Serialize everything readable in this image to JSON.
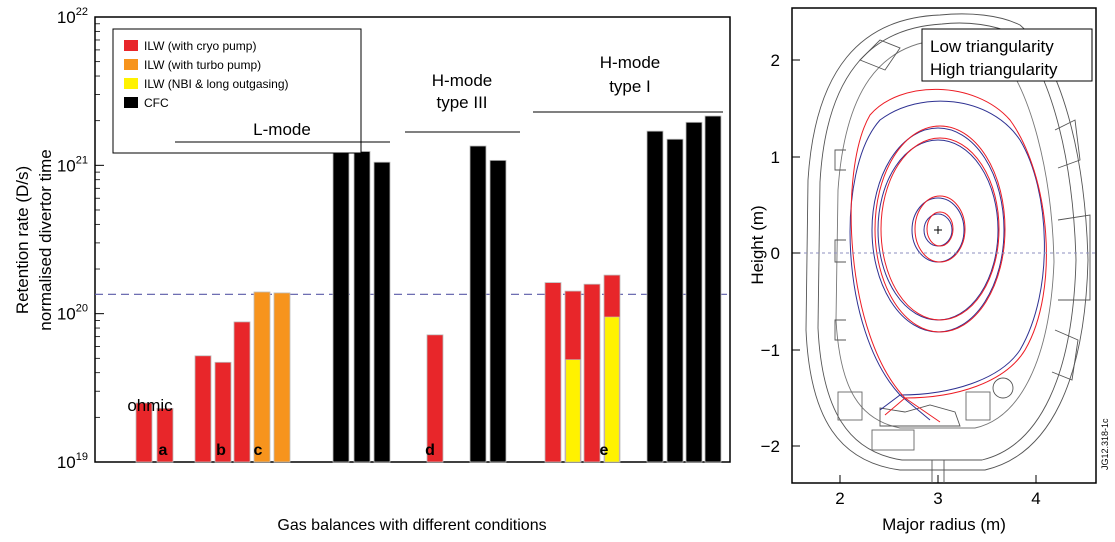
{
  "chart_data": [
    {
      "type": "bar",
      "xlabel": "Gas balances with different conditions",
      "ylabel_line1": "Retention rate (D/s)",
      "ylabel_line2": "normalised divertor time",
      "yscale": "log",
      "ylim": [
        1e+19,
        1e+22
      ],
      "yticks": [
        {
          "value": 1e+19,
          "base": "10",
          "exp": "19"
        },
        {
          "value": 1e+20,
          "base": "10",
          "exp": "20"
        },
        {
          "value": 1e+21,
          "base": "10",
          "exp": "21"
        },
        {
          "value": 1e+22,
          "base": "10",
          "exp": "22"
        }
      ],
      "reference_line": {
        "value": 1.35e+20,
        "color": "#5a5aa8",
        "style": "dashed"
      },
      "legend": {
        "placement": "top-left",
        "entries": [
          {
            "label": "ILW (with cryo pump)",
            "color": "#e8262a"
          },
          {
            "label": "ILW (with turbo pump)",
            "color": "#f7941d"
          },
          {
            "label": "ILW (NBI & long outgasing)",
            "color": "#fff200"
          },
          {
            "label": "CFC",
            "color": "#000000"
          }
        ]
      },
      "bars": [
        {
          "category": 0,
          "value": 2.5e+19,
          "color": "#e8262a"
        },
        {
          "category": 1,
          "value": 2.3e+19,
          "color": "#e8262a"
        },
        {
          "category": 2,
          "value": 5.2e+19,
          "color": "#e8262a"
        },
        {
          "category": 3,
          "value": 4.7e+19,
          "color": "#e8262a"
        },
        {
          "category": 4,
          "value": 8.8e+19,
          "color": "#e8262a"
        },
        {
          "category": 5,
          "value": 1.4e+20,
          "color": "#f7941d"
        },
        {
          "category": 6,
          "value": 1.38e+20,
          "color": "#f7941d"
        },
        {
          "category": 7,
          "value": 1.25e+21,
          "color": "#000000"
        },
        {
          "category": 8,
          "value": 1.24e+21,
          "color": "#000000"
        },
        {
          "category": 9,
          "value": 1.05e+21,
          "color": "#000000"
        },
        {
          "category": 10,
          "value": 7.2e+19,
          "color": "#e8262a"
        },
        {
          "category": 11,
          "value": 1.35e+21,
          "color": "#000000"
        },
        {
          "category": 12,
          "value": 1.08e+21,
          "color": "#000000"
        },
        {
          "category": 13,
          "value": 1.62e+20,
          "color": "#e8262a"
        },
        {
          "category": 14,
          "value": 1.42e+20,
          "color": "#e8262a",
          "inner": 4.9e+19,
          "inner_color": "#fff200"
        },
        {
          "category": 15,
          "value": 1.58e+20,
          "color": "#e8262a"
        },
        {
          "category": 16,
          "value": 1.82e+20,
          "color": "#e8262a",
          "inner": 9.5e+19,
          "inner_color": "#fff200"
        },
        {
          "category": 17,
          "value": 1.7e+21,
          "color": "#000000"
        },
        {
          "category": 18,
          "value": 1.5e+21,
          "color": "#000000"
        },
        {
          "category": 19,
          "value": 1.95e+21,
          "color": "#000000"
        },
        {
          "category": 20,
          "value": 2.15e+21,
          "color": "#000000"
        }
      ],
      "group_labels": [
        {
          "text": "L-mode"
        },
        {
          "text": "H-mode",
          "text2": "type III"
        },
        {
          "text": "H-mode",
          "text2": "type I"
        }
      ],
      "annotations": [
        {
          "text": "ohmic",
          "bold": false
        },
        {
          "text": "a",
          "bold": true
        },
        {
          "text": "b",
          "bold": true
        },
        {
          "text": "c",
          "bold": true
        },
        {
          "text": "d",
          "bold": true
        },
        {
          "text": "e",
          "bold": true
        }
      ]
    },
    {
      "type": "line",
      "xlabel": "Major radius (m)",
      "ylabel": "Height (m)",
      "xlim": [
        1.5,
        4.6
      ],
      "ylim": [
        -2.45,
        2.45
      ],
      "xticks": [
        "2",
        "3",
        "4"
      ],
      "yticks": [
        "2",
        "1",
        "0",
        "−1",
        "−2"
      ],
      "legend": {
        "placement": "top-right",
        "entries": [
          {
            "label": "Low triangularity",
            "color": "#2e3192"
          },
          {
            "label": "High triangularity",
            "color": "#ed1c24"
          }
        ]
      },
      "series": [
        {
          "name": "Low triangularity",
          "color": "#2e3192"
        },
        {
          "name": "High triangularity",
          "color": "#ed1c24"
        }
      ],
      "side_label": "JG12.318-1c"
    }
  ]
}
